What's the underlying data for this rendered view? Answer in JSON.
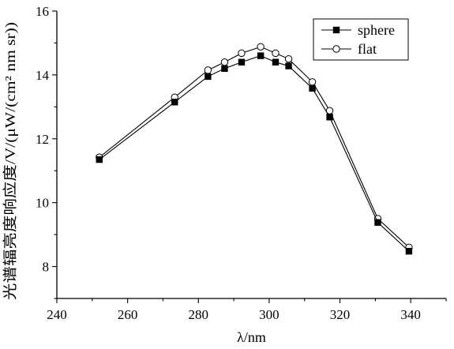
{
  "chart_data": {
    "type": "line",
    "xlabel": "λ/nm",
    "ylabel": "光谱辐亮度响应度/V/(μW/(cm² nm sr))",
    "xlim": [
      240,
      350
    ],
    "ylim": [
      7,
      16
    ],
    "xticks": [
      240,
      260,
      280,
      300,
      320,
      340
    ],
    "yticks": [
      8,
      10,
      12,
      14,
      16
    ],
    "legend_position": "top-right",
    "grid": false,
    "x": [
      252,
      273.3,
      282.7,
      287.4,
      292.2,
      297.6,
      301.8,
      305.5,
      312.2,
      317.1,
      330.7,
      339.5
    ],
    "series": [
      {
        "name": "sphere",
        "marker": "filled-square",
        "values": [
          11.35,
          13.15,
          13.95,
          14.2,
          14.4,
          14.6,
          14.4,
          14.28,
          13.58,
          12.68,
          9.38,
          8.48
        ]
      },
      {
        "name": "flat",
        "marker": "open-circle",
        "values": [
          11.42,
          13.3,
          14.15,
          14.4,
          14.68,
          14.88,
          14.68,
          14.5,
          13.78,
          12.88,
          9.5,
          8.6
        ]
      }
    ]
  }
}
